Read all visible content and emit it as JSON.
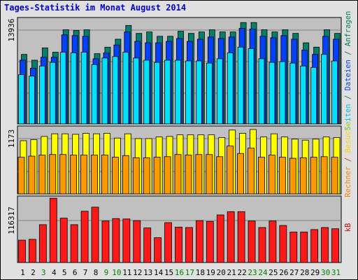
{
  "title": "Tages-Statistik im Monat August 2014",
  "chart_data": {
    "type": "bar",
    "title": "Tages-Statistik im Monat August 2014",
    "categories": [
      "1",
      "2",
      "3",
      "4",
      "5",
      "6",
      "7",
      "8",
      "9",
      "10",
      "11",
      "12",
      "13",
      "14",
      "15",
      "16",
      "17",
      "18",
      "19",
      "20",
      "21",
      "22",
      "23",
      "24",
      "25",
      "26",
      "27",
      "28",
      "29",
      "30",
      "31"
    ],
    "category_colors": [
      "#000000",
      "#000000",
      "#008000",
      "#000000",
      "#000000",
      "#000000",
      "#000000",
      "#000000",
      "#008000",
      "#008000",
      "#000000",
      "#000000",
      "#000000",
      "#000000",
      "#000000",
      "#008000",
      "#008000",
      "#000000",
      "#000000",
      "#000000",
      "#000000",
      "#000000",
      "#008000",
      "#008000",
      "#000000",
      "#000000",
      "#000000",
      "#000000",
      "#000000",
      "#008000",
      "#008000"
    ],
    "panels": [
      {
        "id": "top",
        "tick_label": "13936",
        "ylim": [
          0,
          14500
        ],
        "axis_label_parts": [
          {
            "text": "Seiten",
            "color": "#00c0e0"
          },
          {
            "text": " / ",
            "color": "#008060"
          },
          {
            "text": "Dateien",
            "color": "#0040ff"
          },
          {
            "text": " / ",
            "color": "#008060"
          },
          {
            "text": "Anfragen",
            "color": "#008060"
          }
        ],
        "series": [
          {
            "color": "#00806a",
            "values": [
              9600,
              8800,
              10500,
              9900,
              13000,
              12900,
              13000,
              9700,
              10600,
              11700,
              13600,
              12500,
              12700,
              12100,
              12100,
              12800,
              12500,
              12700,
              13000,
              12700,
              12700,
              14000,
              14000,
              13000,
              12700,
              13000,
              12500,
              11200,
              10600,
              13000,
              12500
            ]
          },
          {
            "color": "#0040ff",
            "values": [
              8800,
              7700,
              9200,
              9200,
              12300,
              12200,
              12100,
              9000,
              9800,
              10900,
              12700,
              11400,
              11200,
              11200,
              11400,
              11800,
              11400,
              11700,
              12000,
              11800,
              12000,
              13200,
              13100,
              12100,
              11900,
              12200,
              11700,
              10200,
              9600,
              12100,
              11700
            ]
          },
          {
            "color": "#00e0ff",
            "values": [
              6800,
              6600,
              8000,
              8500,
              9900,
              9800,
              9900,
              8200,
              9100,
              9300,
              9900,
              9100,
              8800,
              8500,
              8800,
              8800,
              8700,
              8700,
              8400,
              9000,
              9800,
              10600,
              10400,
              9000,
              8500,
              8600,
              8400,
              8000,
              7800,
              9600,
              8700
            ]
          }
        ]
      },
      {
        "id": "middle",
        "tick_label": "1173",
        "ylim": [
          0,
          1250
        ],
        "axis_label_parts": [
          {
            "text": "Rechner",
            "color": "#ff8000"
          },
          {
            "text": " / ",
            "color": "#c04000"
          },
          {
            "text": "Besuche",
            "color": "#ffd000"
          }
        ],
        "series": [
          {
            "color": "#ffff00",
            "values": [
              1000,
              1020,
              1080,
              1130,
              1130,
              1120,
              1140,
              1130,
              1140,
              1050,
              1130,
              1040,
              1040,
              1070,
              1080,
              1110,
              1110,
              1110,
              1110,
              1060,
              1200,
              1140,
              1210,
              1070,
              1130,
              1070,
              1030,
              1010,
              1030,
              1070,
              1060
            ]
          },
          {
            "color": "#ff9900",
            "values": [
              690,
              710,
              730,
              740,
              740,
              730,
              730,
              730,
              730,
              690,
              720,
              680,
              680,
              690,
              700,
              740,
              730,
              740,
              740,
              700,
              900,
              760,
              860,
              690,
              730,
              690,
              670,
              680,
              690,
              700,
              690
            ]
          }
        ]
      },
      {
        "id": "bottom",
        "tick_label": "116317",
        "ylim": [
          0,
          160000
        ],
        "axis_label_parts": [
          {
            "text": "kB",
            "color": "#cc0000"
          }
        ],
        "series": [
          {
            "color": "#ff1a1a",
            "values": [
              55000,
              57000,
              93000,
              158000,
              109000,
              93000,
              126000,
              136000,
              102000,
              108000,
              107000,
              103000,
              85000,
              61000,
              98000,
              87000,
              86000,
              103000,
              101000,
              117000,
              125000,
              125000,
              102000,
              86000,
              102000,
              91000,
              75000,
              75000,
              81000,
              86000,
              83000
            ]
          }
        ]
      }
    ]
  }
}
